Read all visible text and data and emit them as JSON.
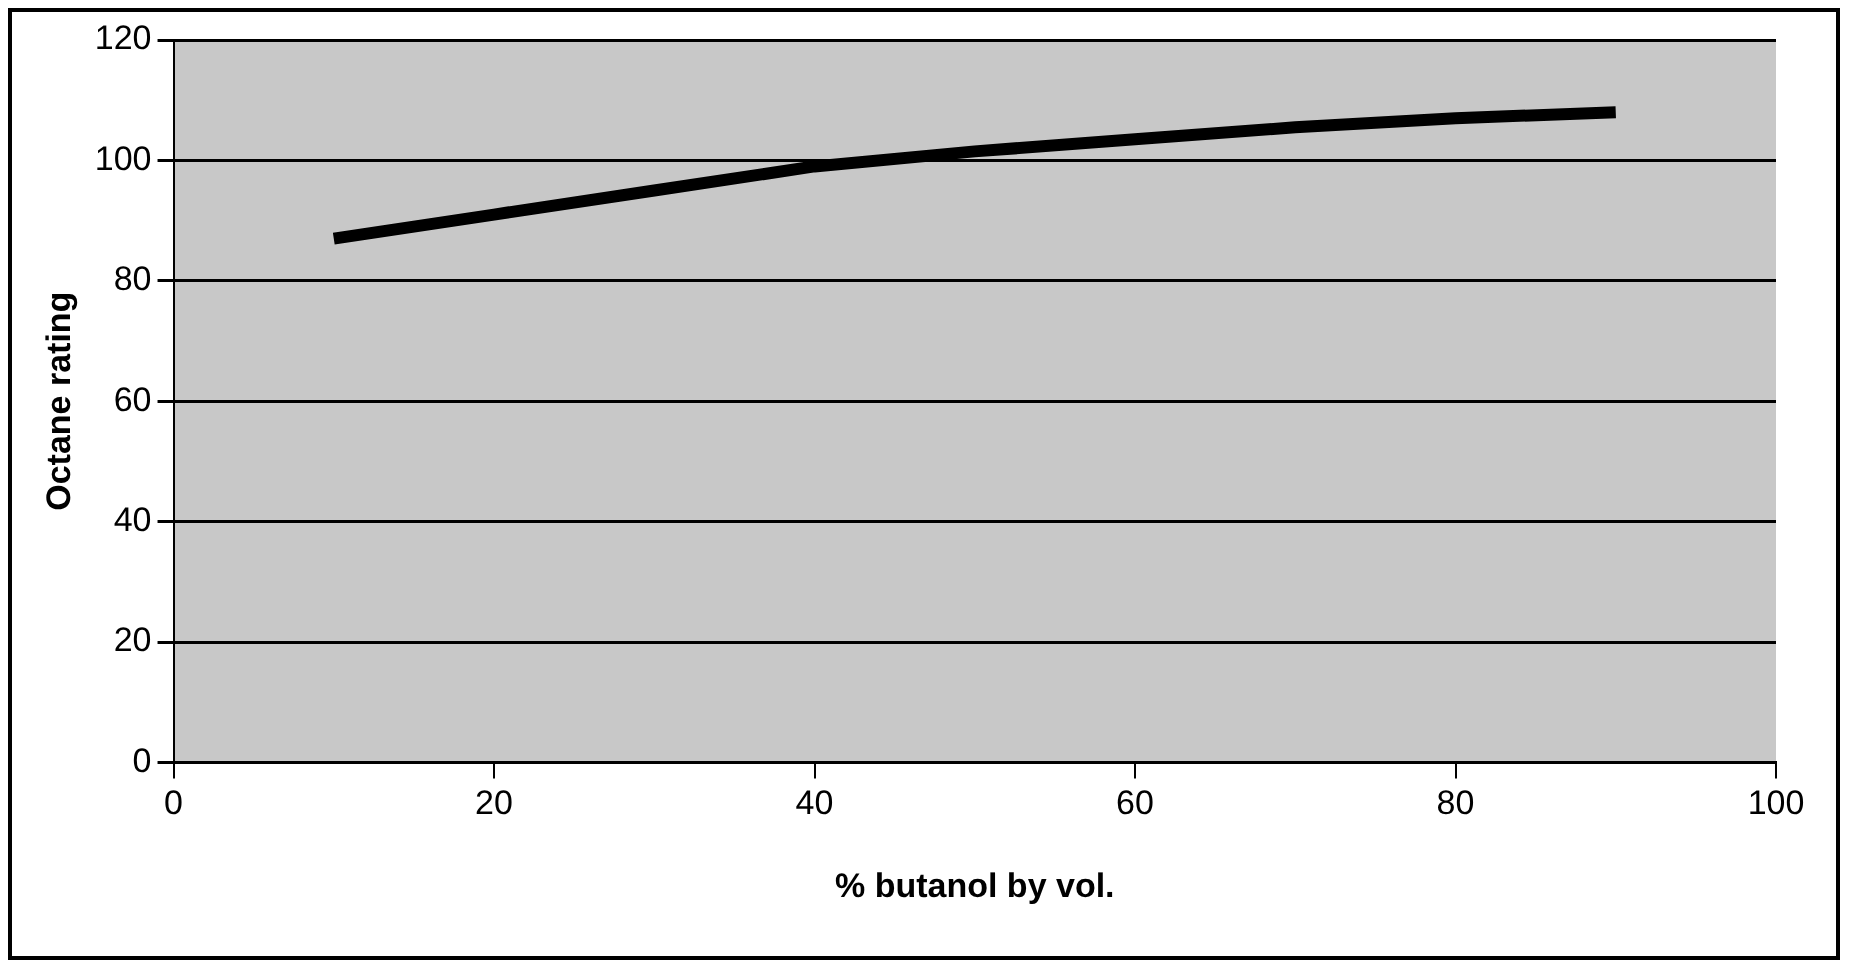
{
  "chart_data": {
    "type": "line",
    "xlabel": "% butanol by vol.",
    "ylabel": "Octane rating",
    "x": [
      10,
      20,
      30,
      40,
      50,
      60,
      70,
      80,
      90
    ],
    "series": [
      {
        "color": "#000000",
        "values": [
          87,
          91,
          95,
          99,
          101.5,
          103.5,
          105.5,
          107,
          108
        ]
      }
    ],
    "xlim": [
      0,
      100
    ],
    "xticks": [
      0,
      20,
      40,
      60,
      80,
      100
    ],
    "ylim": [
      0,
      120
    ],
    "yticks": [
      0,
      20,
      40,
      60,
      80,
      100,
      120
    ],
    "grid": "y",
    "legend": false,
    "marker": "none",
    "line_style": "solid"
  }
}
